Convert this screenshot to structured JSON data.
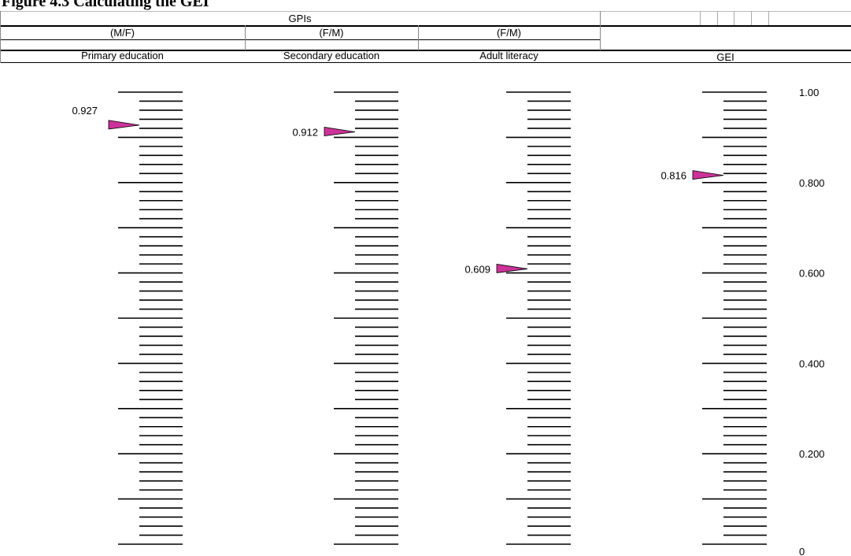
{
  "figure_title": "Figure 4.3 Calculating the GEI",
  "header": {
    "group_label": "GPIs",
    "ratios": [
      "(M/F)",
      "(F/M)",
      "(F/M)"
    ],
    "columns": [
      "Primary education",
      "Secondary education",
      "Adult literacy",
      "GEI"
    ]
  },
  "chart_data": {
    "type": "scatter",
    "title": "",
    "ylim": [
      0,
      1
    ],
    "axis_ticks": [
      "1.00",
      "0.800",
      "0.600",
      "0.400",
      "0.200",
      "0"
    ],
    "axis_tick_values": [
      1.0,
      0.8,
      0.6,
      0.4,
      0.2,
      0
    ],
    "scales": [
      {
        "name": "Primary education",
        "value": 0.927,
        "label": "0.927"
      },
      {
        "name": "Secondary education",
        "value": 0.912,
        "label": "0.912"
      },
      {
        "name": "Adult literacy",
        "value": 0.609,
        "label": "0.609"
      },
      {
        "name": "GEI",
        "value": 0.816,
        "label": "0.816"
      }
    ],
    "marker_color": "#cc3399"
  }
}
